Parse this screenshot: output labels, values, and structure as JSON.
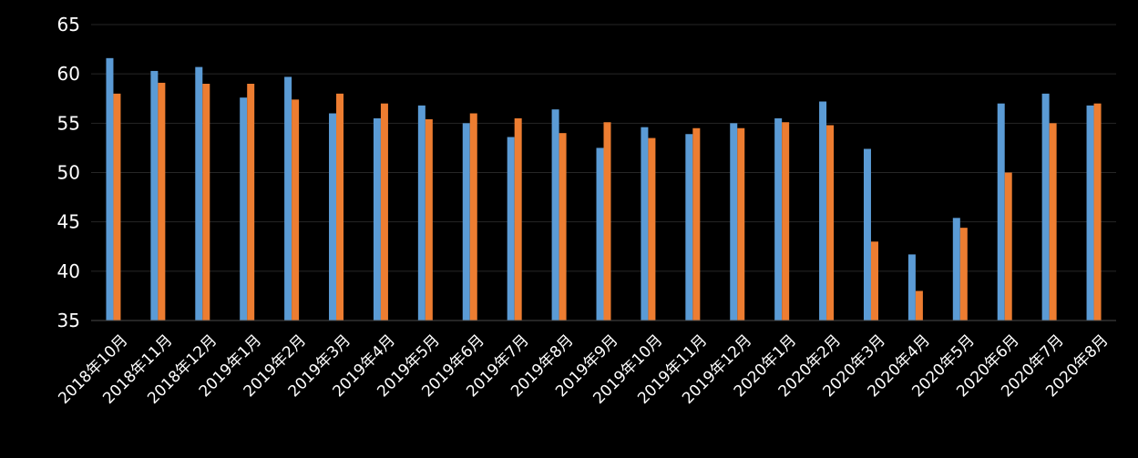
{
  "chart_data": {
    "type": "bar",
    "categories": [
      "2018年10月",
      "2018年11月",
      "2018年12月",
      "2019年1月",
      "2019年2月",
      "2019年3月",
      "2019年4月",
      "2019年5月",
      "2019年6月",
      "2019年7月",
      "2019年8月",
      "2019年9月",
      "2019年10月",
      "2019年11月",
      "2019年12月",
      "2020年1月",
      "2020年2月",
      "2020年3月",
      "2020年4月",
      "2020年5月",
      "2020年6月",
      "2020年7月",
      "2020年8月"
    ],
    "series": [
      {
        "values": [
          61.6,
          60.3,
          60.7,
          57.6,
          59.7,
          56.0,
          55.5,
          56.8,
          55.0,
          53.6,
          56.4,
          52.5,
          54.6,
          53.9,
          55.0,
          55.5,
          57.2,
          52.4,
          41.7,
          45.4,
          57.0,
          58.0,
          56.8
        ],
        "color": "#5b9bd5"
      },
      {
        "values": [
          58.0,
          59.1,
          59.0,
          59.0,
          57.4,
          58.0,
          57.0,
          55.4,
          56.0,
          55.5,
          54.0,
          55.1,
          53.5,
          54.5,
          54.5,
          55.1,
          54.8,
          43.0,
          38.0,
          44.4,
          50.0,
          55.0,
          57.0
        ],
        "color": "#ed7d31"
      }
    ],
    "ylim": [
      35,
      65
    ],
    "yticks": [
      35,
      40,
      45,
      50,
      55,
      60,
      65
    ],
    "grid": true,
    "background": "#000000",
    "text_color": "#ffffff"
  }
}
